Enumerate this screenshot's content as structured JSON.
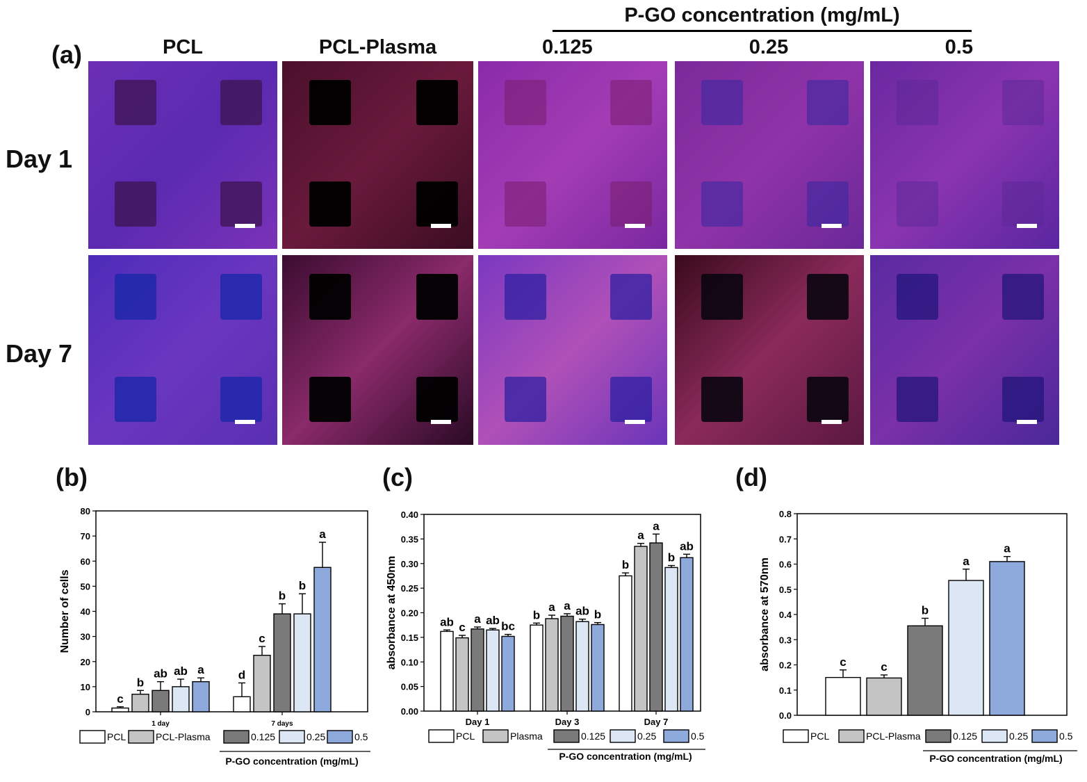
{
  "figure": {
    "panel_a_label": "(a)",
    "panel_b_label": "(b)",
    "panel_c_label": "(c)",
    "panel_d_label": "(d)",
    "concentration_header": "P-GO concentration (mg/mL)",
    "columns": [
      "PCL",
      "PCL-Plasma",
      "0.125",
      "0.25",
      "0.5"
    ],
    "rows": [
      "Day 1",
      "Day 7"
    ],
    "colors": {
      "PCL": "#ffffff",
      "Plasma": "#c4c4c4",
      "c0125": "#7a7a7a",
      "c025": "#dce6f5",
      "c05": "#8ea9db"
    }
  },
  "chart_data": [
    {
      "id": "b",
      "type": "bar",
      "ylabel": "Number of cells",
      "xlabel": "",
      "ylim": [
        0,
        80
      ],
      "yticks": [
        "0",
        "10",
        "20",
        "30",
        "40",
        "50",
        "60",
        "70",
        "80"
      ],
      "categories": [
        "1 day",
        "7 days"
      ],
      "series": [
        {
          "name": "PCL",
          "values": [
            1.5,
            6
          ],
          "errors": [
            0.5,
            5.5
          ],
          "letters": [
            "c",
            "d"
          ]
        },
        {
          "name": "PCL-Plasma",
          "values": [
            7,
            22.5
          ],
          "errors": [
            1.5,
            3.5
          ],
          "letters": [
            "b",
            "c"
          ]
        },
        {
          "name": "0.125",
          "values": [
            8.5,
            39
          ],
          "errors": [
            3.5,
            4
          ],
          "letters": [
            "ab",
            "b"
          ]
        },
        {
          "name": "0.25",
          "values": [
            10,
            39
          ],
          "errors": [
            3,
            8
          ],
          "letters": [
            "ab",
            "b"
          ]
        },
        {
          "name": "0.5",
          "values": [
            12,
            57.5
          ],
          "errors": [
            1.5,
            10
          ],
          "letters": [
            "a",
            "a"
          ]
        }
      ],
      "legend": [
        "PCL",
        "PCL-Plasma",
        "0.125",
        "0.25",
        "0.5"
      ],
      "legend_caption": "P-GO concentration (mg/mL)"
    },
    {
      "id": "c",
      "type": "bar",
      "ylabel": "absorbance at 450nm",
      "xlabel": "",
      "ylim": [
        0,
        0.4
      ],
      "yticks": [
        "0.00",
        "0.05",
        "0.10",
        "0.15",
        "0.20",
        "0.25",
        "0.30",
        "0.35",
        "0.40"
      ],
      "categories": [
        "Day 1",
        "Day 3",
        "Day 7"
      ],
      "series": [
        {
          "name": "PCL",
          "values": [
            0.162,
            0.175,
            0.275
          ],
          "errors": [
            0.003,
            0.004,
            0.006
          ],
          "letters": [
            "ab",
            "b",
            "b"
          ]
        },
        {
          "name": "Plasma",
          "values": [
            0.149,
            0.188,
            0.335
          ],
          "errors": [
            0.005,
            0.007,
            0.006
          ],
          "letters": [
            "c",
            "a",
            "a"
          ]
        },
        {
          "name": "0.125",
          "values": [
            0.167,
            0.193,
            0.342
          ],
          "errors": [
            0.004,
            0.005,
            0.018
          ],
          "letters": [
            "a",
            "a",
            "a"
          ]
        },
        {
          "name": "0.25",
          "values": [
            0.165,
            0.182,
            0.292
          ],
          "errors": [
            0.003,
            0.005,
            0.004
          ],
          "letters": [
            "ab",
            "ab",
            "b"
          ]
        },
        {
          "name": "0.5",
          "values": [
            0.152,
            0.176,
            0.312
          ],
          "errors": [
            0.004,
            0.004,
            0.007
          ],
          "letters": [
            "bc",
            "b",
            "ab"
          ]
        }
      ],
      "legend": [
        "PCL",
        "Plasma",
        "0.125",
        "0.25",
        "0.5"
      ],
      "legend_caption": "P-GO concentration (mg/mL)"
    },
    {
      "id": "d",
      "type": "bar",
      "ylabel": "absorbance at 570nm",
      "xlabel": "",
      "ylim": [
        0,
        0.8
      ],
      "yticks": [
        "0.0",
        "0.1",
        "0.2",
        "0.3",
        "0.4",
        "0.5",
        "0.6",
        "0.7",
        "0.8"
      ],
      "categories": [
        ""
      ],
      "series": [
        {
          "name": "PCL",
          "values": [
            0.15
          ],
          "errors": [
            0.03
          ],
          "letters": [
            "c"
          ]
        },
        {
          "name": "PCL-Plasma",
          "values": [
            0.148
          ],
          "errors": [
            0.012
          ],
          "letters": [
            "c"
          ]
        },
        {
          "name": "0.125",
          "values": [
            0.355
          ],
          "errors": [
            0.03
          ],
          "letters": [
            "b"
          ]
        },
        {
          "name": "0.25",
          "values": [
            0.535
          ],
          "errors": [
            0.045
          ],
          "letters": [
            "a"
          ]
        },
        {
          "name": "0.5",
          "values": [
            0.61
          ],
          "errors": [
            0.02
          ],
          "letters": [
            "a"
          ]
        }
      ],
      "legend": [
        "PCL",
        "PCL-Plasma",
        "0.125",
        "0.25",
        "0.5"
      ],
      "legend_caption": "P-GO concentration (mg/mL)"
    }
  ]
}
